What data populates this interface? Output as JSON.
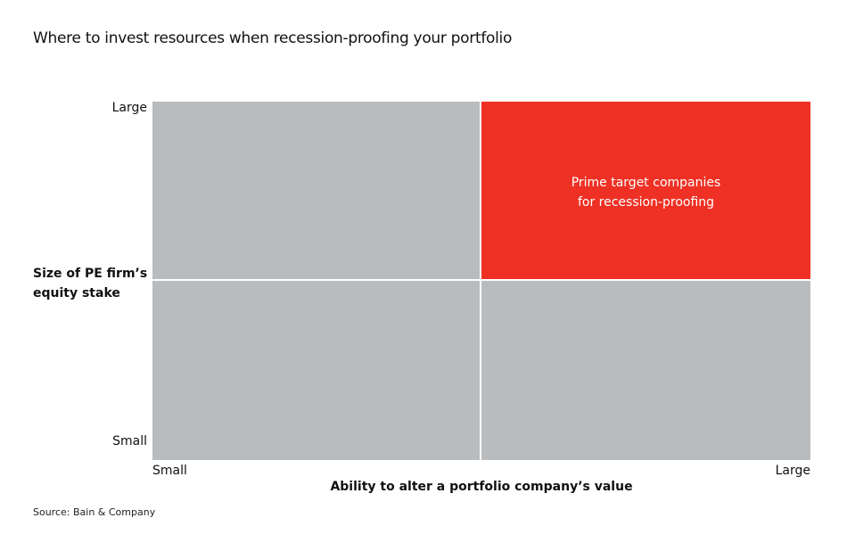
{
  "title": "Where to invest resources when recession-proofing your portfolio",
  "y_axis": {
    "title_line1": "Size of PE firm’s",
    "title_line2": "equity stake",
    "high": "Large",
    "low": "Small"
  },
  "x_axis": {
    "title": "Ability to alter a portfolio company’s value",
    "low": "Small",
    "high": "Large"
  },
  "quadrants": {
    "top_right": {
      "line1": "Prime target companies",
      "line2": "for recession-proofing",
      "color": "#ee3124"
    },
    "other_color": "#b9bcbe"
  },
  "source": "Source: Bain & Company"
}
